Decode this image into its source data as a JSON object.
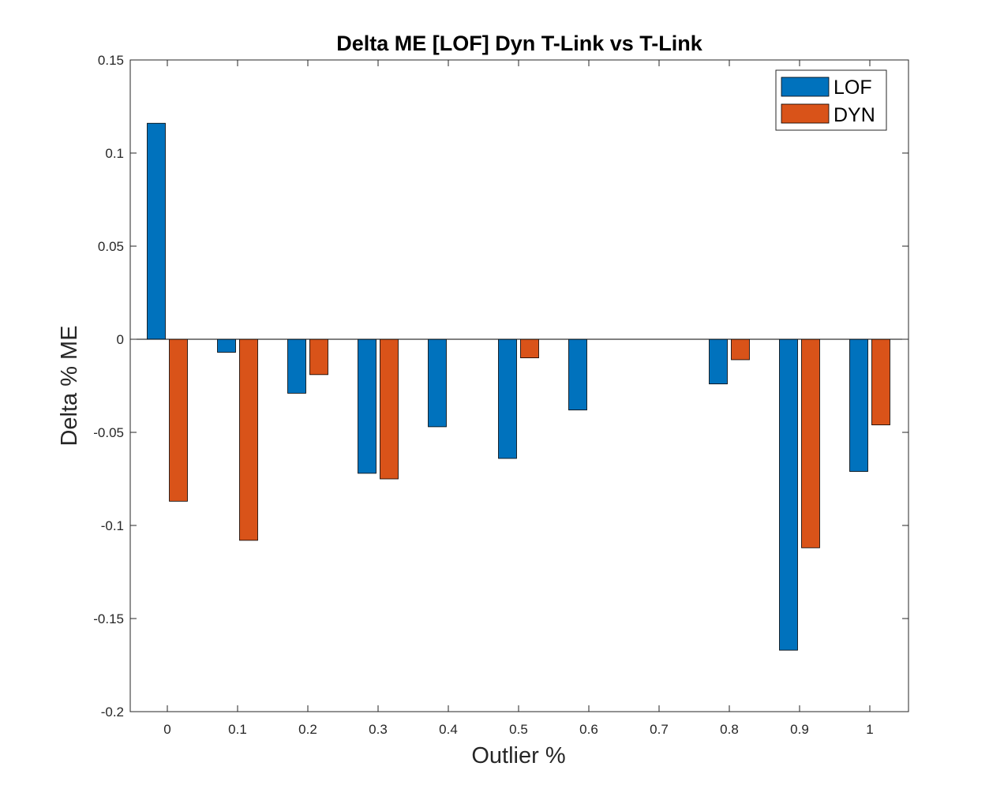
{
  "chart_data": {
    "type": "bar",
    "title": "Delta ME [LOF] Dyn T-Link vs T-Link",
    "xlabel": "Outlier %",
    "ylabel": "Delta % ME",
    "categories": [
      "0",
      "0.1",
      "0.2",
      "0.3",
      "0.4",
      "0.5",
      "0.6",
      "0.7",
      "0.8",
      "0.9",
      "1"
    ],
    "series": [
      {
        "name": "LOF",
        "color": "#0072BD",
        "values": [
          0.116,
          -0.007,
          -0.029,
          -0.072,
          -0.047,
          -0.064,
          -0.038,
          0.0,
          -0.024,
          -0.167,
          -0.071
        ]
      },
      {
        "name": "DYN",
        "color": "#D95319",
        "values": [
          -0.087,
          -0.108,
          -0.019,
          -0.075,
          0.0,
          -0.01,
          0.0,
          0.0,
          -0.011,
          -0.112,
          -0.046
        ]
      }
    ],
    "ylim": [
      -0.2,
      0.15
    ],
    "yticks": [
      "0.15",
      "0.1",
      "0.05",
      "0",
      "-0.05",
      "-0.1",
      "-0.15",
      "-0.2"
    ],
    "ytick_values": [
      0.15,
      0.1,
      0.05,
      0,
      -0.05,
      -0.1,
      -0.15,
      -0.2
    ],
    "legend_position": "top-right",
    "grid": false
  }
}
